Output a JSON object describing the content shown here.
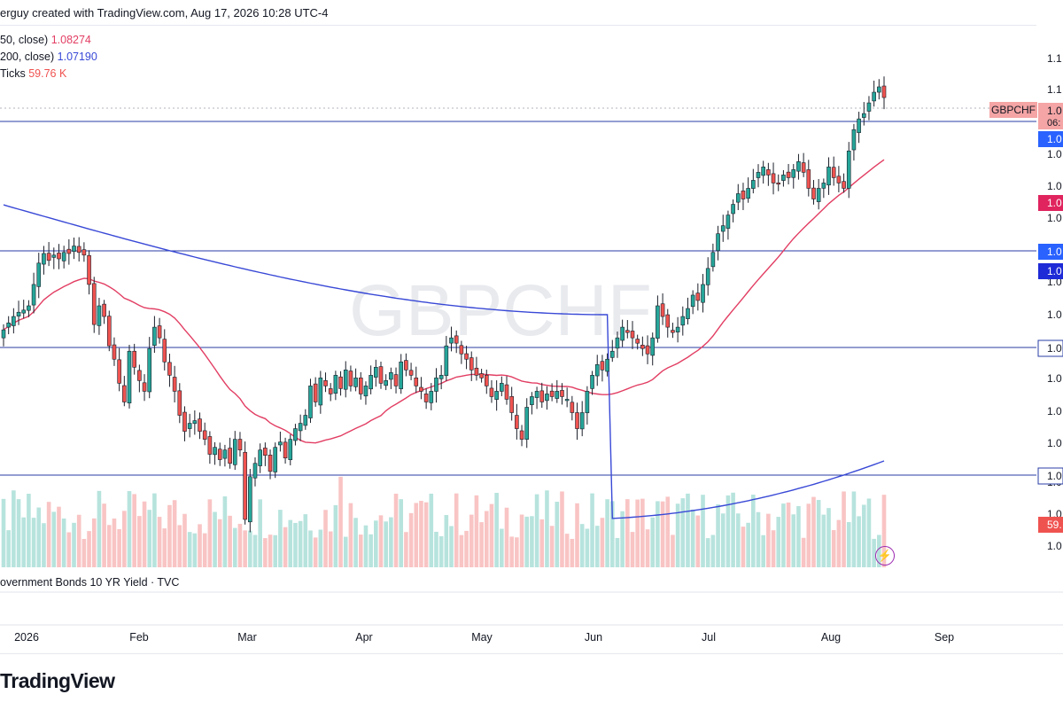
{
  "header": {
    "byline": "erguy created with TradingView.com, Aug 17, 2026 10:28 UTC-4"
  },
  "legend": {
    "ma50_label": "50, close)",
    "ma50_value": "1.08274",
    "ma200_label": "200, close)",
    "ma200_value": "1.07190",
    "volume_label": "Ticks",
    "volume_value": "59.76 K"
  },
  "watermark": "GBPCHF",
  "indicator_pane": {
    "label": "overnment Bonds 10 YR Yield · TVC"
  },
  "brand": {
    "logo_text": "TradingView"
  },
  "colors": {
    "up": "#26a69a",
    "down": "#ef5350",
    "ma50": "#e23e63",
    "ma200": "#3949d6",
    "hline": "#2a3ea5",
    "vol_up": "#b7e3dd",
    "vol_down": "#f9c4c4"
  },
  "chart_data": {
    "type": "candlestick",
    "symbol": "GBPCHF",
    "x_tick_labels": [
      "2026",
      "Feb",
      "Mar",
      "Apr",
      "May",
      "Jun",
      "Jul",
      "Aug",
      "Sep"
    ],
    "y_axis_labels": [
      "1.1",
      "1.1",
      "1.0",
      "1.0",
      "1.0",
      "1.0",
      "1.0",
      "1.0",
      "1.0",
      "1.0",
      "1.0",
      "1.0",
      "1.0",
      "1.0",
      "1.0",
      "1.0",
      "1.0",
      "1.0"
    ],
    "price_tags": [
      {
        "text": "1.0",
        "sub": "06:",
        "color": "#f5a5a5",
        "text_color": "#131722"
      },
      {
        "text": "1.0",
        "color": "#2962ff",
        "text_color": "#ffffff"
      },
      {
        "text": "1.0",
        "color": "#e0245e",
        "text_color": "#ffffff"
      },
      {
        "text": "1.0",
        "color": "#2962ff",
        "text_color": "#ffffff"
      },
      {
        "text": "1.0",
        "color": "#1f2bd6",
        "text_color": "#ffffff"
      },
      {
        "text": "1.0",
        "color": "#ffffff",
        "text_color": "#131722",
        "border": "#2a3ea5"
      },
      {
        "text": "1.0",
        "color": "#ffffff",
        "text_color": "#131722",
        "border": "#2a3ea5"
      },
      {
        "text": "59.",
        "color": "#ef5350",
        "text_color": "#ffffff"
      }
    ],
    "symbol_tag": "GBPCHF",
    "closes": [
      1.0615,
      1.0628,
      1.064,
      1.0648,
      1.0652,
      1.066,
      1.07,
      1.074,
      1.0758,
      1.0745,
      1.0755,
      1.0748,
      1.076,
      1.0758,
      1.0772,
      1.076,
      1.0755,
      1.07,
      1.0625,
      1.066,
      1.064,
      1.0585,
      1.056,
      1.0515,
      1.048,
      1.0575,
      1.0545,
      1.052,
      1.05,
      1.058,
      1.062,
      1.06,
      1.0555,
      1.053,
      1.05,
      1.0455,
      1.0425,
      1.044,
      1.0445,
      1.0425,
      1.041,
      1.0382,
      1.0395,
      1.0372,
      1.039,
      1.0365,
      1.041,
      1.039,
      1.026,
      1.034,
      1.0365,
      1.039,
      1.038,
      1.035,
      1.0395,
      1.0405,
      1.0375,
      1.041,
      1.043,
      1.044,
      1.0455,
      1.051,
      1.048,
      1.0525,
      1.051,
      1.0495,
      1.053,
      1.0505,
      1.054,
      1.051,
      1.0525,
      1.0495,
      1.051,
      1.053,
      1.0545,
      1.0515,
      1.052,
      1.0535,
      1.051,
      1.0555,
      1.054,
      1.053,
      1.051,
      1.05,
      1.048,
      1.05,
      1.0525,
      1.053,
      1.0585,
      1.06,
      1.059,
      1.057,
      1.056,
      1.054,
      1.053,
      1.0525,
      1.051,
      1.049,
      1.05,
      1.0515,
      1.0485,
      1.046,
      1.043,
      1.041,
      1.047,
      1.049,
      1.05,
      1.048,
      1.0495,
      1.049,
      1.05,
      1.049,
      1.0485,
      1.046,
      1.043,
      1.046,
      1.05,
      1.053,
      1.055,
      1.054,
      1.056,
      1.0575,
      1.06,
      1.062,
      1.061,
      1.06,
      1.059,
      1.058,
      1.057,
      1.06,
      1.066,
      1.064,
      1.062,
      1.061,
      1.062,
      1.064,
      1.0655,
      1.068,
      1.067,
      1.07,
      1.073,
      1.076,
      1.0795,
      1.081,
      1.083,
      1.085,
      1.087,
      1.086,
      1.088,
      1.0895,
      1.091,
      1.092,
      1.0905,
      1.089,
      1.089,
      1.0905,
      1.09,
      1.0915,
      1.093,
      1.091,
      1.088,
      1.086,
      1.088,
      1.089,
      1.092,
      1.09,
      1.089,
      1.088,
      1.095,
      1.099,
      1.101,
      1.102,
      1.104,
      1.106,
      1.107,
      1.105
    ]
  }
}
